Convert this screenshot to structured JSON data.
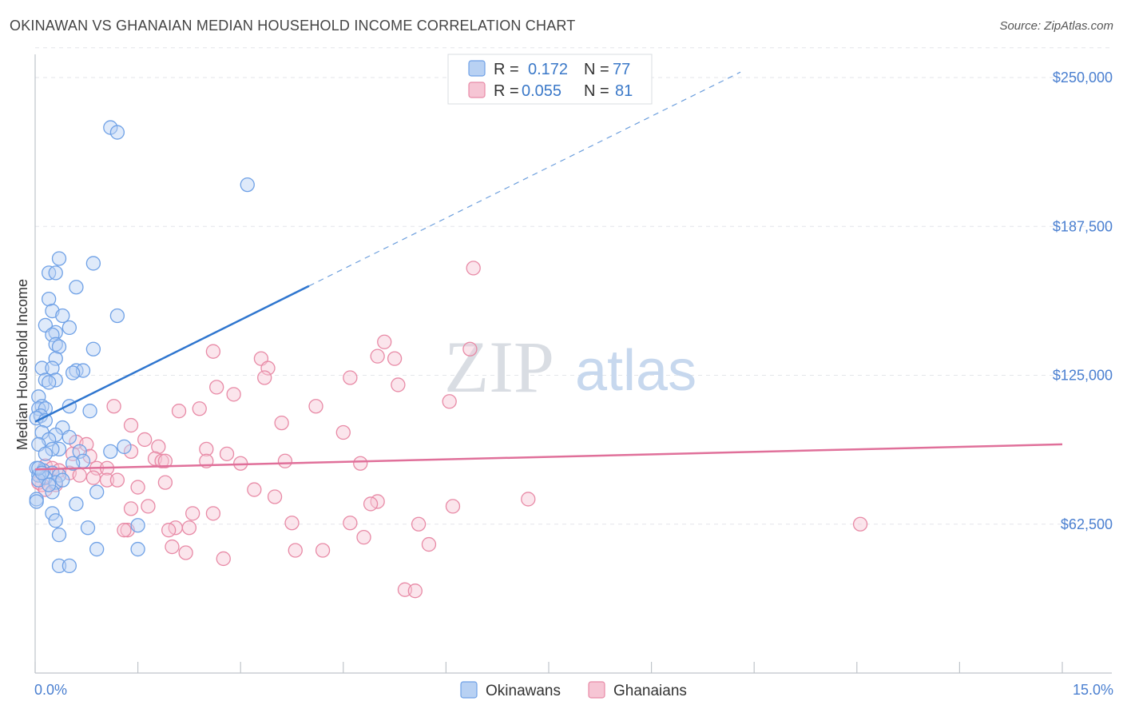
{
  "title": "OKINAWAN VS GHANAIAN MEDIAN HOUSEHOLD INCOME CORRELATION CHART",
  "source": "Source: ZipAtlas.com",
  "watermark": {
    "zip": "ZIP",
    "atlas": "atlas"
  },
  "colors": {
    "blue": "#6fa1e6",
    "blue_fill": "#b8d1f3",
    "blue_line": "#2f76cf",
    "pink": "#e88aa6",
    "pink_fill": "#f6c5d4",
    "pink_line": "#e0709a",
    "axis_text": "#4a7fd0",
    "grid": "#e3e6ea"
  },
  "legend": {
    "r_label": "R =",
    "n_label": "N =",
    "rows": [
      {
        "series": "Okinawans",
        "r": "0.172",
        "n": "77"
      },
      {
        "series": "Ghanaians",
        "r": "0.055",
        "n": "81"
      }
    ]
  },
  "chart_data": {
    "type": "scatter",
    "xlabel": "",
    "ylabel": "Median Household Income",
    "xlim": [
      0,
      15
    ],
    "ylim": [
      0,
      262500
    ],
    "x_tick_labels": {
      "min": "0.0%",
      "max": "15.0%"
    },
    "y_ticks": [
      {
        "value": 62500,
        "label": "$62,500"
      },
      {
        "value": 125000,
        "label": "$125,000"
      },
      {
        "value": 187500,
        "label": "$187,500"
      },
      {
        "value": 250000,
        "label": "$250,000"
      }
    ],
    "series": [
      {
        "name": "Okinawans",
        "trend": {
          "x1": 0.0,
          "y1": 105500,
          "x2": 4.0,
          "y2": 162500,
          "dash_to_x": 10.3
        },
        "points": [
          [
            1.1,
            229000
          ],
          [
            1.2,
            227000
          ],
          [
            3.1,
            205000
          ],
          [
            0.35,
            174000
          ],
          [
            0.85,
            172000
          ],
          [
            0.2,
            168000
          ],
          [
            0.3,
            168000
          ],
          [
            0.6,
            162000
          ],
          [
            0.2,
            157000
          ],
          [
            0.25,
            152000
          ],
          [
            0.4,
            150000
          ],
          [
            1.2,
            150000
          ],
          [
            0.15,
            146000
          ],
          [
            0.5,
            145000
          ],
          [
            0.3,
            143000
          ],
          [
            0.25,
            142000
          ],
          [
            0.3,
            138000
          ],
          [
            0.35,
            137000
          ],
          [
            0.85,
            136000
          ],
          [
            0.3,
            132000
          ],
          [
            0.1,
            128000
          ],
          [
            0.25,
            128000
          ],
          [
            0.6,
            127000
          ],
          [
            0.7,
            127000
          ],
          [
            0.55,
            126000
          ],
          [
            0.15,
            123000
          ],
          [
            0.3,
            123000
          ],
          [
            0.2,
            122000
          ],
          [
            0.05,
            116000
          ],
          [
            0.1,
            112000
          ],
          [
            0.5,
            112000
          ],
          [
            0.05,
            111000
          ],
          [
            0.15,
            111000
          ],
          [
            0.8,
            110000
          ],
          [
            0.08,
            108000
          ],
          [
            0.02,
            107000
          ],
          [
            0.15,
            106000
          ],
          [
            0.4,
            103000
          ],
          [
            0.1,
            101000
          ],
          [
            0.3,
            100000
          ],
          [
            0.5,
            99000
          ],
          [
            0.2,
            98000
          ],
          [
            0.05,
            96000
          ],
          [
            1.3,
            95000
          ],
          [
            0.35,
            94000
          ],
          [
            0.25,
            94000
          ],
          [
            0.65,
            93000
          ],
          [
            1.1,
            93000
          ],
          [
            0.15,
            92000
          ],
          [
            0.7,
            89000
          ],
          [
            0.55,
            88000
          ],
          [
            0.02,
            86000
          ],
          [
            0.12,
            85000
          ],
          [
            0.25,
            84000
          ],
          [
            0.05,
            83000
          ],
          [
            0.35,
            83000
          ],
          [
            0.15,
            82000
          ],
          [
            0.05,
            81000
          ],
          [
            0.3,
            80000
          ],
          [
            0.9,
            76000
          ],
          [
            0.25,
            76000
          ],
          [
            0.02,
            73000
          ],
          [
            0.6,
            71000
          ],
          [
            0.25,
            67000
          ],
          [
            0.3,
            64000
          ],
          [
            1.5,
            62000
          ],
          [
            0.77,
            61000
          ],
          [
            0.35,
            58000
          ],
          [
            0.9,
            52000
          ],
          [
            1.5,
            52000
          ],
          [
            0.35,
            45000
          ],
          [
            0.5,
            45000
          ],
          [
            0.05,
            86000
          ],
          [
            0.1,
            84000
          ],
          [
            0.2,
            79000
          ],
          [
            0.4,
            81000
          ],
          [
            0.02,
            72000
          ]
        ]
      },
      {
        "name": "Ghanaians",
        "trend": {
          "x1": 0.0,
          "y1": 85500,
          "x2": 15.0,
          "y2": 96000
        },
        "points": [
          [
            6.4,
            170000
          ],
          [
            5.1,
            139000
          ],
          [
            2.6,
            135000
          ],
          [
            6.35,
            136000
          ],
          [
            3.3,
            132000
          ],
          [
            5.0,
            133000
          ],
          [
            5.25,
            132000
          ],
          [
            3.4,
            128000
          ],
          [
            3.35,
            124000
          ],
          [
            4.6,
            124000
          ],
          [
            2.65,
            120000
          ],
          [
            5.3,
            121000
          ],
          [
            2.9,
            117000
          ],
          [
            6.05,
            114000
          ],
          [
            1.15,
            112000
          ],
          [
            2.4,
            111000
          ],
          [
            4.1,
            112000
          ],
          [
            2.1,
            110000
          ],
          [
            3.6,
            105000
          ],
          [
            1.4,
            104000
          ],
          [
            4.5,
            101000
          ],
          [
            0.6,
            97000
          ],
          [
            1.6,
            98000
          ],
          [
            0.75,
            96000
          ],
          [
            1.8,
            95000
          ],
          [
            1.4,
            93000
          ],
          [
            2.5,
            94000
          ],
          [
            2.8,
            92000
          ],
          [
            0.55,
            92000
          ],
          [
            0.8,
            91000
          ],
          [
            1.75,
            90000
          ],
          [
            1.85,
            89000
          ],
          [
            1.9,
            89000
          ],
          [
            2.5,
            89000
          ],
          [
            3.65,
            89000
          ],
          [
            3.0,
            88000
          ],
          [
            4.75,
            88000
          ],
          [
            0.15,
            87000
          ],
          [
            0.25,
            86000
          ],
          [
            0.9,
            86000
          ],
          [
            1.05,
            86000
          ],
          [
            0.35,
            85000
          ],
          [
            0.5,
            84000
          ],
          [
            0.65,
            83000
          ],
          [
            0.85,
            82000
          ],
          [
            1.05,
            81000
          ],
          [
            1.2,
            81000
          ],
          [
            1.9,
            80000
          ],
          [
            0.1,
            79000
          ],
          [
            1.5,
            78000
          ],
          [
            3.2,
            77000
          ],
          [
            3.5,
            74000
          ],
          [
            7.2,
            73000
          ],
          [
            5.0,
            72000
          ],
          [
            4.9,
            71000
          ],
          [
            6.1,
            70000
          ],
          [
            1.65,
            70000
          ],
          [
            1.4,
            69000
          ],
          [
            2.3,
            67000
          ],
          [
            2.6,
            67000
          ],
          [
            3.75,
            63000
          ],
          [
            4.6,
            63000
          ],
          [
            5.6,
            62500
          ],
          [
            12.05,
            62500
          ],
          [
            2.05,
            61000
          ],
          [
            1.35,
            60000
          ],
          [
            1.3,
            60000
          ],
          [
            1.95,
            60000
          ],
          [
            2.25,
            61000
          ],
          [
            4.8,
            57000
          ],
          [
            5.75,
            54000
          ],
          [
            2.0,
            53000
          ],
          [
            3.8,
            51500
          ],
          [
            4.2,
            51500
          ],
          [
            2.2,
            50500
          ],
          [
            2.75,
            48000
          ],
          [
            5.4,
            35000
          ],
          [
            5.55,
            34500
          ],
          [
            0.05,
            80000
          ],
          [
            0.15,
            77000
          ],
          [
            0.3,
            79000
          ]
        ]
      }
    ]
  }
}
